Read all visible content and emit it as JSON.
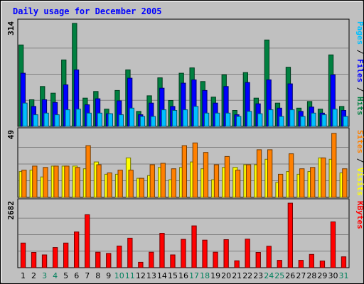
{
  "chart_data": [
    {
      "type": "bar",
      "title": "Daily usage for December 2005",
      "categories": [
        "1",
        "2",
        "3",
        "4",
        "5",
        "6",
        "7",
        "8",
        "9",
        "10",
        "11",
        "12",
        "13",
        "14",
        "15",
        "16",
        "17",
        "18",
        "19",
        "20",
        "21",
        "22",
        "23",
        "24",
        "25",
        "26",
        "27",
        "28",
        "29",
        "30",
        "31"
      ],
      "weekend_days": [
        "3",
        "4",
        "10",
        "11",
        "17",
        "18",
        "24",
        "25",
        "31"
      ],
      "ylim": [
        0,
        314
      ],
      "ytick_label": "314",
      "right_label_parts": [
        "Pages",
        "Files",
        "Hits"
      ],
      "right_label_separator": " / ",
      "series": [
        {
          "name": "Hits",
          "color": "#008040",
          "values": [
            245,
            80,
            120,
            100,
            200,
            310,
            85,
            105,
            52,
            108,
            170,
            45,
            92,
            146,
            78,
            160,
            176,
            135,
            88,
            155,
            48,
            162,
            85,
            260,
            70,
            178,
            55,
            75,
            52,
            215,
            60
          ]
        },
        {
          "name": "Files",
          "color": "#0000ff",
          "values": [
            160,
            60,
            80,
            72,
            125,
            170,
            65,
            83,
            38,
            77,
            145,
            35,
            70,
            115,
            60,
            130,
            140,
            108,
            70,
            120,
            35,
            132,
            68,
            140,
            55,
            128,
            45,
            58,
            40,
            155,
            48
          ]
        },
        {
          "name": "Pages",
          "color": "#00c0ff",
          "values": [
            70,
            35,
            40,
            35,
            50,
            52,
            40,
            40,
            38,
            35,
            55,
            30,
            30,
            50,
            48,
            50,
            60,
            40,
            40,
            40,
            30,
            45,
            38,
            50,
            30,
            50,
            30,
            40,
            35,
            52,
            30
          ]
        }
      ]
    },
    {
      "type": "bar",
      "categories": [
        "1",
        "2",
        "3",
        "4",
        "5",
        "6",
        "7",
        "8",
        "9",
        "10",
        "11",
        "12",
        "13",
        "14",
        "15",
        "16",
        "17",
        "18",
        "19",
        "20",
        "21",
        "22",
        "23",
        "24",
        "25",
        "26",
        "27",
        "28",
        "29",
        "30",
        "31"
      ],
      "ylim": [
        0,
        49
      ],
      "ytick_label": "49",
      "right_label_parts": [
        "Sites",
        "Visits"
      ],
      "right_label_separator": " / ",
      "series": [
        {
          "name": "Visits",
          "color": "#ffff00",
          "values": [
            19,
            20,
            15,
            23,
            23,
            23,
            21,
            26,
            17,
            17,
            29,
            14,
            16,
            22,
            13,
            22,
            26,
            21,
            13,
            22,
            22,
            24,
            24,
            28,
            11,
            19,
            17,
            19,
            29,
            28,
            18
          ]
        },
        {
          "name": "Sites",
          "color": "#ff8000",
          "values": [
            20,
            23,
            22,
            23,
            23,
            22,
            38,
            24,
            18,
            20,
            20,
            14,
            24,
            25,
            21,
            38,
            40,
            33,
            24,
            30,
            20,
            24,
            35,
            35,
            17,
            32,
            21,
            22,
            29,
            47,
            21
          ]
        }
      ]
    },
    {
      "type": "bar",
      "categories": [
        "1",
        "2",
        "3",
        "4",
        "5",
        "6",
        "7",
        "8",
        "9",
        "10",
        "11",
        "12",
        "13",
        "14",
        "15",
        "16",
        "17",
        "18",
        "19",
        "20",
        "21",
        "22",
        "23",
        "24",
        "25",
        "26",
        "27",
        "28",
        "29",
        "30",
        "31"
      ],
      "ylim": [
        0,
        2682
      ],
      "ytick_label": "2682",
      "right_label_parts": [
        "KBytes"
      ],
      "right_label_separator": "",
      "series": [
        {
          "name": "KBytes",
          "color": "#ff0000",
          "values": [
            1000,
            620,
            520,
            820,
            1000,
            1450,
            2150,
            630,
            580,
            880,
            1200,
            220,
            630,
            1400,
            520,
            1150,
            1700,
            1120,
            630,
            1140,
            280,
            1160,
            620,
            870,
            300,
            2620,
            300,
            540,
            270,
            1860,
            440
          ]
        }
      ]
    }
  ],
  "colors": {
    "background": "#c0c0c0",
    "title": "#0000ff",
    "grid": "#808080",
    "weekday_label": "#000000",
    "weekend_label": "#00805c"
  }
}
